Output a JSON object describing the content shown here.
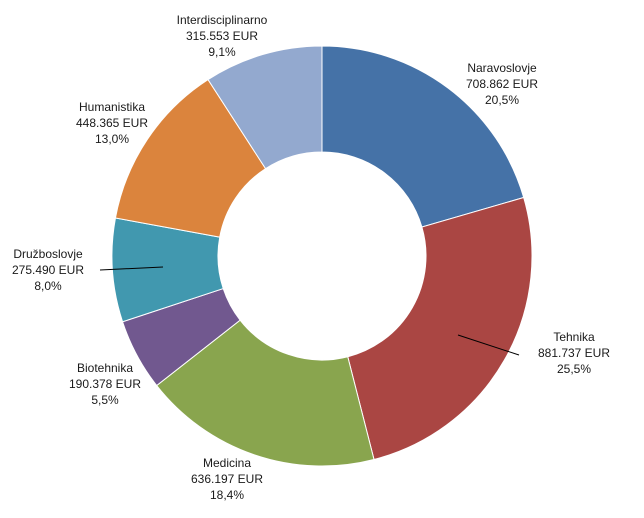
{
  "chart_data": {
    "type": "pie",
    "donut": true,
    "categories": [
      "Naravoslovje",
      "Tehnika",
      "Medicina",
      "Biotehnika",
      "Družboslovje",
      "Humanistika",
      "Interdisciplinarno"
    ],
    "values": [
      708862,
      881737,
      636197,
      190378,
      275490,
      448365,
      315553
    ],
    "value_labels": [
      "708.862 EUR",
      "881.737 EUR",
      "636.197 EUR",
      "190.378 EUR",
      "275.490 EUR",
      "448.365 EUR",
      "315.553 EUR"
    ],
    "percent_labels": [
      "20,5%",
      "25,5%",
      "18,4%",
      "5,5%",
      "8,0%",
      "13,0%",
      "9,1%"
    ],
    "colors": [
      "#4572a7",
      "#aa4643",
      "#89a54e",
      "#71588f",
      "#4198af",
      "#db843d",
      "#93a9cf"
    ],
    "start": "top, clockwise",
    "legend": "none"
  }
}
